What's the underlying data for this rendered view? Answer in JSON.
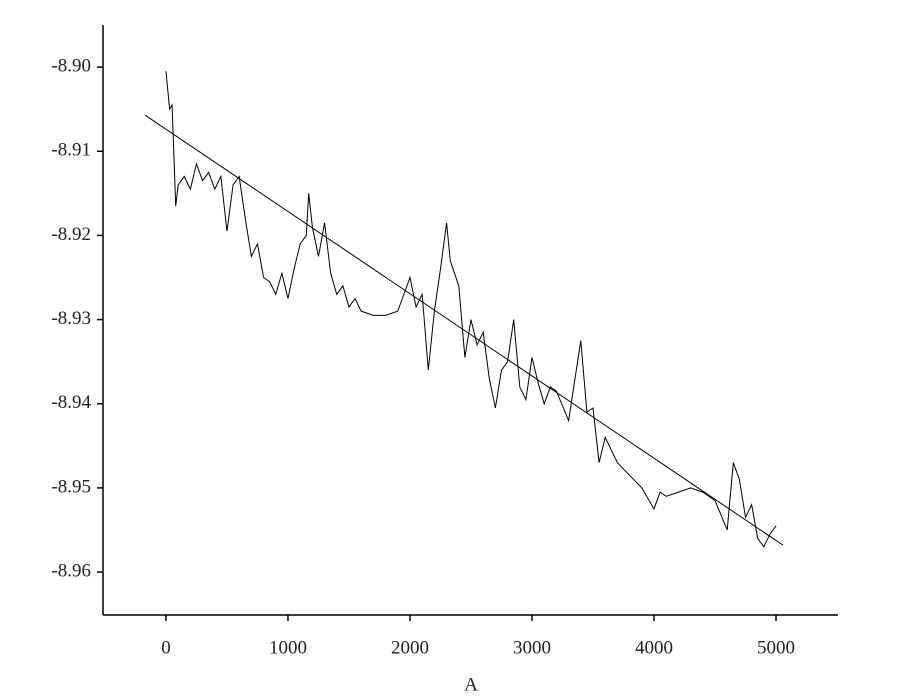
{
  "chart_data": {
    "type": "line",
    "xlabel": "A",
    "xlim": [
      -516,
      5508
    ],
    "ylim": [
      -8.9651,
      -8.895
    ],
    "xticks": [
      0,
      1000,
      2000,
      3000,
      4000,
      5000
    ],
    "yticks": [
      {
        "value": -8.9,
        "label": "-8.90"
      },
      -8.91,
      -8.92,
      -8.93,
      -8.94,
      -8.95,
      -8.96
    ],
    "series": [
      {
        "color": "#000000",
        "x": [
          0,
          30,
          50,
          80,
          100,
          150,
          200,
          250,
          300,
          350,
          400,
          450,
          500,
          550,
          600,
          650,
          700,
          750,
          800,
          850,
          900,
          950,
          1000,
          1050,
          1100,
          1150,
          1170,
          1200,
          1250,
          1300,
          1350,
          1400,
          1450,
          1500,
          1550,
          1600,
          1700,
          1800,
          1900,
          2000,
          2050,
          2100,
          2150,
          2200,
          2250,
          2300,
          2330,
          2400,
          2450,
          2500,
          2550,
          2600,
          2650,
          2700,
          2750,
          2800,
          2850,
          2900,
          2950,
          3000,
          3050,
          3100,
          3150,
          3200,
          3300,
          3400,
          3450,
          3500,
          3550,
          3600,
          3700,
          3800,
          3900,
          4000,
          4050,
          4100,
          4200,
          4300,
          4400,
          4500,
          4600,
          4650,
          4700,
          4750,
          4800,
          4850,
          4900,
          4950,
          5000
        ],
        "values": [
          -8.9005,
          -8.905,
          -8.9045,
          -8.9165,
          -8.914,
          -8.913,
          -8.9145,
          -8.9115,
          -8.9135,
          -8.9125,
          -8.9145,
          -8.913,
          -8.9195,
          -8.914,
          -8.913,
          -8.918,
          -8.9225,
          -8.921,
          -8.925,
          -8.9255,
          -8.927,
          -8.9245,
          -8.9275,
          -8.924,
          -8.921,
          -8.92,
          -8.915,
          -8.919,
          -8.9225,
          -8.9185,
          -8.9245,
          -8.927,
          -8.926,
          -8.9285,
          -8.9275,
          -8.929,
          -8.9295,
          -8.9295,
          -8.929,
          -8.925,
          -8.9285,
          -8.927,
          -8.936,
          -8.929,
          -8.924,
          -8.9185,
          -8.923,
          -8.926,
          -8.9345,
          -8.93,
          -8.933,
          -8.9315,
          -8.937,
          -8.9405,
          -8.936,
          -8.935,
          -8.93,
          -8.938,
          -8.9395,
          -8.9345,
          -8.9375,
          -8.94,
          -8.938,
          -8.9385,
          -8.942,
          -8.9325,
          -8.941,
          -8.9405,
          -8.947,
          -8.944,
          -8.947,
          -8.9485,
          -8.95,
          -8.9525,
          -8.9505,
          -8.951,
          -8.9505,
          -8.95,
          -8.9505,
          -8.9515,
          -8.955,
          -8.947,
          -8.949,
          -8.9535,
          -8.952,
          -8.956,
          -8.957,
          -8.9555,
          -8.9545
        ]
      },
      {
        "color": "#000000",
        "x": [
          -172,
          5057
        ],
        "values": [
          -8.9057,
          -8.9568
        ]
      }
    ]
  }
}
